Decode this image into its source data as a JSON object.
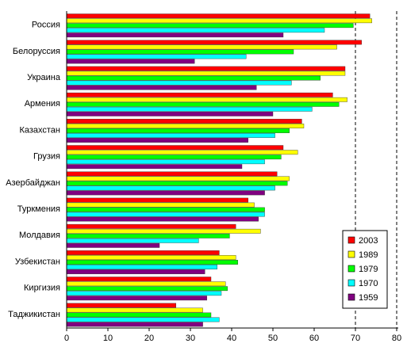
{
  "chart_data": {
    "type": "bar",
    "orientation": "horizontal",
    "categories": [
      "Россия",
      "Белоруссия",
      "Украина",
      "Армения",
      "Казахстан",
      "Грузия",
      "Азербайджан",
      "Туркмения",
      "Молдавия",
      "Узбекистан",
      "Киргизия",
      "Таджикистан"
    ],
    "series": [
      {
        "name": "2003",
        "color": "#ff0000",
        "values": [
          73.5,
          71.5,
          67.5,
          64.5,
          57,
          52.5,
          51,
          44,
          41,
          37,
          35,
          26.5
        ]
      },
      {
        "name": "1989",
        "color": "#ffff00",
        "values": [
          74,
          65.5,
          67.5,
          68,
          57.5,
          56,
          54,
          45.5,
          47,
          41,
          38.5,
          33
        ]
      },
      {
        "name": "1979",
        "color": "#00ff00",
        "values": [
          69.5,
          55,
          61.5,
          66,
          54,
          52,
          53.5,
          48,
          39.5,
          41.5,
          39,
          35
        ]
      },
      {
        "name": "1970",
        "color": "#00ffff",
        "values": [
          62.5,
          43.5,
          54.5,
          59.5,
          50.5,
          48,
          50.5,
          48,
          32,
          36.5,
          37.5,
          37
        ]
      },
      {
        "name": "1959",
        "color": "#800080",
        "values": [
          52.5,
          31,
          46,
          50,
          44,
          42.5,
          48,
          46.5,
          22.5,
          33.5,
          34,
          33
        ]
      }
    ],
    "xlim": [
      0,
      80
    ],
    "xticks": [
      0,
      10,
      20,
      30,
      40,
      50,
      60,
      70,
      80
    ],
    "grid": "vertical dashed lines at 70 and 80",
    "legend": "bottom-right"
  }
}
